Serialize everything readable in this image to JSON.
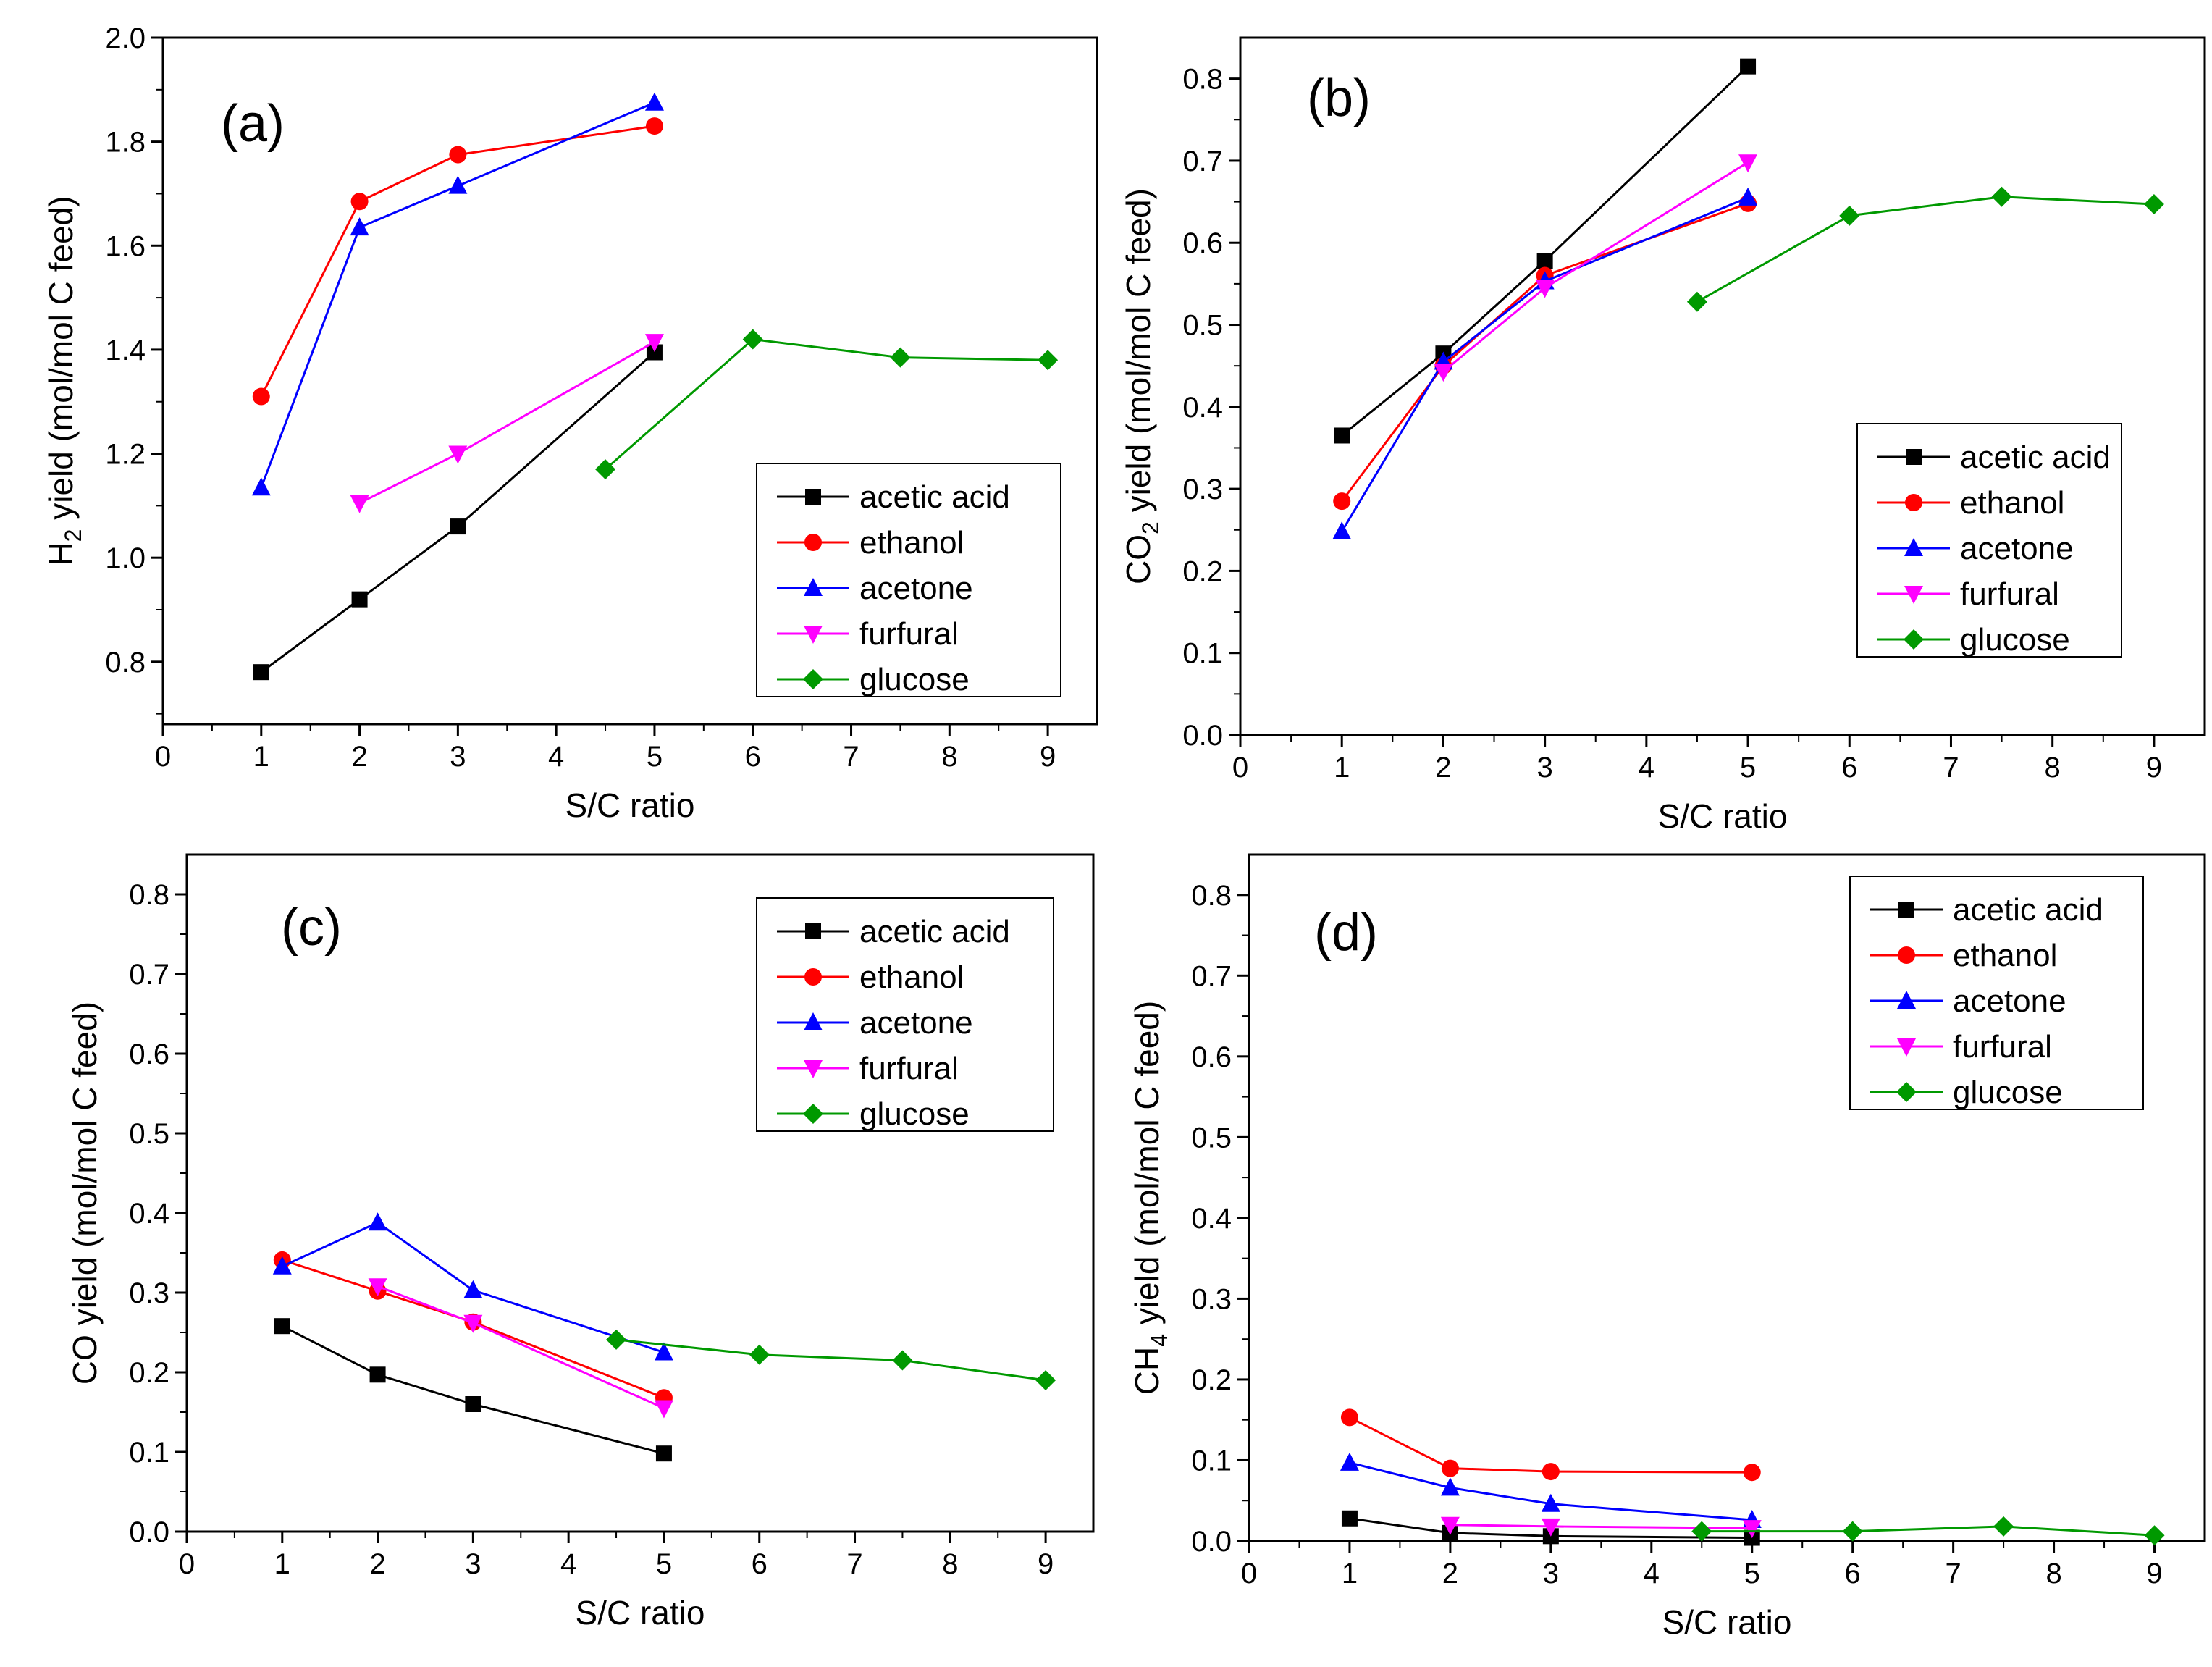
{
  "chart_data": [
    {
      "type": "line",
      "panel_label": "(a)",
      "xlabel": "S/C ratio",
      "ylabel": "H",
      "ylabel_sub": "2",
      "ylabel_rest": " yield (mol/mol C feed)",
      "xlim": [
        0,
        9.5
      ],
      "ylim": [
        0.68,
        2.0
      ],
      "xticks": [
        "0",
        "1",
        "2",
        "3",
        "4",
        "5",
        "6",
        "7",
        "8",
        "9"
      ],
      "yticks": [
        "0.8",
        "1.0",
        "1.2",
        "1.4",
        "1.6",
        "1.8",
        "2.0"
      ],
      "legend_position": "bottom-right",
      "series": [
        {
          "name": "acetic acid",
          "color": "#000000",
          "marker": "square",
          "x": [
            1,
            2,
            3,
            5
          ],
          "y": [
            0.78,
            0.92,
            1.06,
            1.395
          ]
        },
        {
          "name": "ethanol",
          "color": "#ff0000",
          "marker": "circle",
          "x": [
            1,
            2,
            3,
            5
          ],
          "y": [
            1.31,
            1.685,
            1.775,
            1.83
          ]
        },
        {
          "name": "acetone",
          "color": "#0000ff",
          "marker": "triangle-up",
          "x": [
            1,
            2,
            3,
            5
          ],
          "y": [
            1.135,
            1.635,
            1.715,
            1.875
          ]
        },
        {
          "name": "furfural",
          "color": "#ff00ff",
          "marker": "triangle-down",
          "x": [
            2,
            3,
            5
          ],
          "y": [
            1.105,
            1.2,
            1.415
          ]
        },
        {
          "name": "glucose",
          "color": "#009900",
          "marker": "diamond",
          "x": [
            4.5,
            6,
            7.5,
            9
          ],
          "y": [
            1.17,
            1.42,
            1.385,
            1.38
          ]
        }
      ]
    },
    {
      "type": "line",
      "panel_label": "(b)",
      "xlabel": "S/C ratio",
      "ylabel": "CO",
      "ylabel_sub": "2",
      "ylabel_rest": " yield (mol/mol C feed)",
      "xlim": [
        0,
        9.5
      ],
      "ylim": [
        0.0,
        0.85
      ],
      "xticks": [
        "0",
        "1",
        "2",
        "3",
        "4",
        "5",
        "6",
        "7",
        "8",
        "9"
      ],
      "yticks": [
        "0.0",
        "0.1",
        "0.2",
        "0.3",
        "0.4",
        "0.5",
        "0.6",
        "0.7",
        "0.8"
      ],
      "legend_position": "right",
      "series": [
        {
          "name": "acetic acid",
          "color": "#000000",
          "marker": "square",
          "x": [
            1,
            2,
            3,
            5
          ],
          "y": [
            0.365,
            0.465,
            0.578,
            0.815
          ]
        },
        {
          "name": "ethanol",
          "color": "#ff0000",
          "marker": "circle",
          "x": [
            1,
            2,
            3,
            5
          ],
          "y": [
            0.285,
            0.45,
            0.56,
            0.648
          ]
        },
        {
          "name": "acetone",
          "color": "#0000ff",
          "marker": "triangle-up",
          "x": [
            1,
            2,
            3,
            5
          ],
          "y": [
            0.248,
            0.455,
            0.553,
            0.655
          ]
        },
        {
          "name": "furfural",
          "color": "#ff00ff",
          "marker": "triangle-down",
          "x": [
            2,
            3,
            5
          ],
          "y": [
            0.443,
            0.545,
            0.698
          ]
        },
        {
          "name": "glucose",
          "color": "#009900",
          "marker": "diamond",
          "x": [
            4.5,
            6,
            7.5,
            9
          ],
          "y": [
            0.528,
            0.633,
            0.656,
            0.647
          ]
        }
      ]
    },
    {
      "type": "line",
      "panel_label": "(c)",
      "xlabel": "S/C ratio",
      "ylabel": "CO yield (mol/mol C feed)",
      "ylabel_sub": "",
      "ylabel_rest": "",
      "xlim": [
        0,
        9.5
      ],
      "ylim": [
        0.0,
        0.85
      ],
      "xticks": [
        "0",
        "1",
        "2",
        "3",
        "4",
        "5",
        "6",
        "7",
        "8",
        "9"
      ],
      "yticks": [
        "0.0",
        "0.1",
        "0.2",
        "0.3",
        "0.4",
        "0.5",
        "0.6",
        "0.7",
        "0.8"
      ],
      "legend_position": "top-right",
      "series": [
        {
          "name": "acetic acid",
          "color": "#000000",
          "marker": "square",
          "x": [
            1,
            2,
            3,
            5
          ],
          "y": [
            0.258,
            0.197,
            0.16,
            0.098
          ]
        },
        {
          "name": "ethanol",
          "color": "#ff0000",
          "marker": "circle",
          "x": [
            1,
            2,
            3,
            5
          ],
          "y": [
            0.341,
            0.302,
            0.263,
            0.168
          ]
        },
        {
          "name": "acetone",
          "color": "#0000ff",
          "marker": "triangle-up",
          "x": [
            1,
            2,
            3,
            5
          ],
          "y": [
            0.333,
            0.388,
            0.303,
            0.225
          ]
        },
        {
          "name": "furfural",
          "color": "#ff00ff",
          "marker": "triangle-down",
          "x": [
            2,
            3,
            5
          ],
          "y": [
            0.308,
            0.262,
            0.155
          ]
        },
        {
          "name": "glucose",
          "color": "#009900",
          "marker": "diamond",
          "x": [
            4.5,
            6,
            7.5,
            9
          ],
          "y": [
            0.241,
            0.222,
            0.215,
            0.19
          ]
        }
      ]
    },
    {
      "type": "line",
      "panel_label": "(d)",
      "xlabel": "S/C ratio",
      "ylabel": "CH",
      "ylabel_sub": "4",
      "ylabel_rest": " yield (mol/mol C feed)",
      "xlim": [
        0,
        9.5
      ],
      "ylim": [
        0.0,
        0.85
      ],
      "xticks": [
        "0",
        "1",
        "2",
        "3",
        "4",
        "5",
        "6",
        "7",
        "8",
        "9"
      ],
      "yticks": [
        "0.0",
        "0.1",
        "0.2",
        "0.3",
        "0.4",
        "0.5",
        "0.6",
        "0.7",
        "0.8"
      ],
      "legend_position": "top-right",
      "series": [
        {
          "name": "acetic acid",
          "color": "#000000",
          "marker": "square",
          "x": [
            1,
            2,
            3,
            5
          ],
          "y": [
            0.028,
            0.01,
            0.006,
            0.004
          ]
        },
        {
          "name": "ethanol",
          "color": "#ff0000",
          "marker": "circle",
          "x": [
            1,
            2,
            3,
            5
          ],
          "y": [
            0.153,
            0.09,
            0.086,
            0.085
          ]
        },
        {
          "name": "acetone",
          "color": "#0000ff",
          "marker": "triangle-up",
          "x": [
            1,
            2,
            3,
            5
          ],
          "y": [
            0.097,
            0.066,
            0.046,
            0.026
          ]
        },
        {
          "name": "furfural",
          "color": "#ff00ff",
          "marker": "triangle-down",
          "x": [
            2,
            3,
            5
          ],
          "y": [
            0.02,
            0.018,
            0.016
          ]
        },
        {
          "name": "glucose",
          "color": "#009900",
          "marker": "diamond",
          "x": [
            4.5,
            6,
            7.5,
            9
          ],
          "y": [
            0.012,
            0.012,
            0.018,
            0.007
          ]
        }
      ]
    }
  ]
}
